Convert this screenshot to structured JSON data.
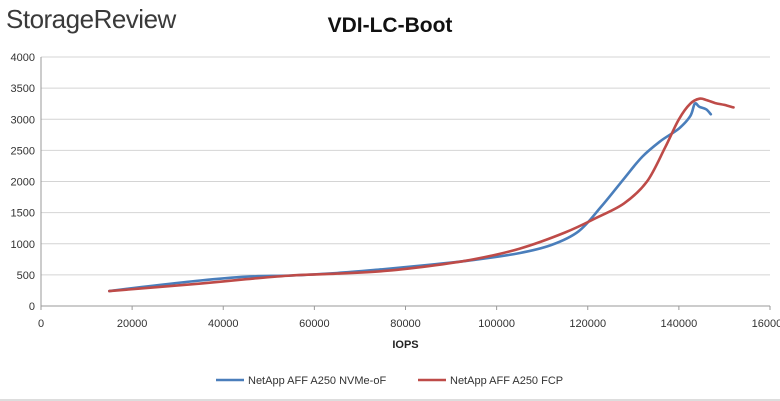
{
  "brand": {
    "name": "StorageReview"
  },
  "chart_data": {
    "type": "line",
    "title": "VDI-LC-Boot",
    "xlabel": "IOPS",
    "ylabel": "",
    "xlim": [
      0,
      160000
    ],
    "ylim": [
      0,
      4000
    ],
    "x_ticks": [
      0,
      20000,
      40000,
      60000,
      80000,
      100000,
      120000,
      140000,
      160000
    ],
    "x_tick_labels": [
      "0",
      "20000",
      "40000",
      "60000",
      "80000",
      "100000",
      "120000",
      "140000",
      "160000"
    ],
    "y_ticks": [
      0,
      500,
      1000,
      1500,
      2000,
      2500,
      3000,
      3500,
      4000
    ],
    "y_tick_labels": [
      "0",
      "500",
      "1000",
      "1500",
      "2000",
      "2500",
      "3000",
      "3500",
      "4000"
    ],
    "grid": "horizontal",
    "legend_position": "bottom",
    "series": [
      {
        "name": "NetApp AFF A250 NVMe-oF",
        "color": "#4a7ebb",
        "x": [
          15000,
          25000,
          35000,
          45000,
          55000,
          65000,
          75000,
          85000,
          95000,
          105000,
          112000,
          118000,
          123000,
          128000,
          132000,
          136000,
          140000,
          142500,
          143500,
          144500,
          146000,
          147000
        ],
        "y": [
          240,
          330,
          410,
          470,
          490,
          530,
          590,
          660,
          740,
          850,
          980,
          1200,
          1600,
          2050,
          2400,
          2650,
          2850,
          3050,
          3250,
          3200,
          3160,
          3080
        ]
      },
      {
        "name": "NetApp AFF A250 FCP",
        "color": "#be4b48",
        "x": [
          15000,
          25000,
          35000,
          45000,
          55000,
          65000,
          75000,
          85000,
          95000,
          105000,
          115000,
          122000,
          128000,
          133000,
          137000,
          140000,
          142500,
          144500,
          146000,
          148000,
          150000,
          152000
        ],
        "y": [
          240,
          300,
          360,
          430,
          490,
          520,
          560,
          640,
          750,
          920,
          1180,
          1420,
          1650,
          2000,
          2550,
          3000,
          3250,
          3330,
          3310,
          3260,
          3230,
          3190
        ]
      }
    ]
  }
}
